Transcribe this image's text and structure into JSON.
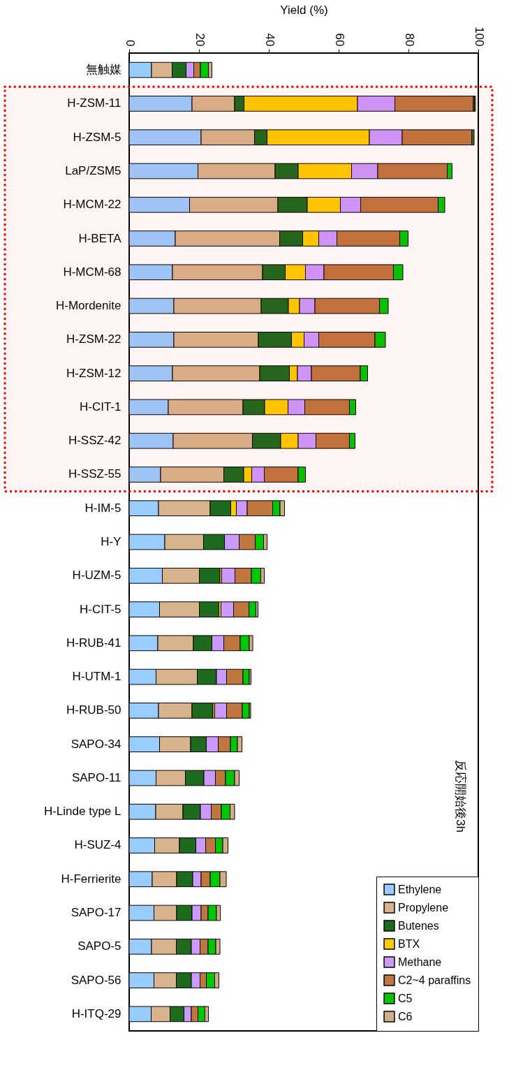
{
  "chart_data": {
    "type": "bar",
    "orientation": "horizontal",
    "stacked": true,
    "xlabel": "Yield (%)",
    "xlim": [
      0,
      100
    ],
    "xticks": [
      0,
      20,
      40,
      60,
      80,
      100
    ],
    "grid": false,
    "legend": "bottom right",
    "categories": [
      "無触媒",
      "H-ZSM-11",
      "H-ZSM-5",
      "LaP/ZSM5",
      "H-MCM-22",
      "H-BETA",
      "H-MCM-68",
      "H-Mordenite",
      "H-ZSM-22",
      "H-ZSM-12",
      "H-CIT-1",
      "H-SSZ-42",
      "H-SSZ-55",
      "H-IM-5",
      "H-Y",
      "H-UZM-5",
      "H-CIT-5",
      "H-RUB-41",
      "H-UTM-1",
      "H-RUB-50",
      "SAPO-34",
      "SAPO-11",
      "H-Linde type L",
      "H-SUZ-4",
      "H-Ferrierite",
      "SAPO-17",
      "SAPO-5",
      "SAPO-56",
      "H-ITQ-29"
    ],
    "series": [
      {
        "name": "Ethylene",
        "color": "#99ccff",
        "values": [
          6.4,
          18.0,
          20.6,
          19.7,
          17.3,
          13.2,
          12.4,
          12.8,
          12.8,
          12.4,
          11.2,
          12.6,
          9.0,
          8.4,
          10.2,
          9.5,
          8.7,
          8.2,
          7.7,
          8.4,
          8.7,
          7.7,
          7.6,
          7.3,
          6.6,
          7.1,
          6.4,
          7.1,
          6.3
        ]
      },
      {
        "name": "Propylene",
        "color": "#d9b38c",
        "values": [
          5.9,
          12.2,
          15.3,
          22.1,
          25.3,
          29.9,
          25.8,
          25.0,
          24.2,
          25.0,
          21.4,
          22.7,
          18.1,
          14.8,
          11.1,
          10.6,
          11.4,
          10.2,
          11.8,
          9.6,
          8.9,
          8.4,
          7.8,
          7.1,
          7.0,
          6.5,
          7.1,
          6.4,
          5.4
        ]
      },
      {
        "name": "Butenes",
        "color": "#1e6b1e",
        "values": [
          4.0,
          2.7,
          3.6,
          6.6,
          8.4,
          6.6,
          6.5,
          7.8,
          9.5,
          8.5,
          6.2,
          8.1,
          5.7,
          5.9,
          6.0,
          5.9,
          5.6,
          5.3,
          5.5,
          6.0,
          4.5,
          5.3,
          5.0,
          4.7,
          4.6,
          4.4,
          4.3,
          4.3,
          4.0
        ]
      },
      {
        "name": "BTX",
        "color": "#ffcc00",
        "values": [
          null,
          32.5,
          29.3,
          15.3,
          9.5,
          4.6,
          5.8,
          3.2,
          3.6,
          2.3,
          6.7,
          5.0,
          2.3,
          1.6,
          null,
          0.5,
          0.6,
          null,
          null,
          0.5,
          null,
          null,
          null,
          null,
          null,
          null,
          null,
          null,
          null
        ]
      },
      {
        "name": "Methane",
        "color": "#cc99ff",
        "values": [
          2.2,
          10.7,
          9.4,
          7.5,
          5.8,
          5.2,
          5.3,
          4.4,
          4.2,
          4.0,
          4.8,
          5.1,
          3.6,
          3.1,
          4.2,
          3.8,
          3.6,
          3.4,
          2.9,
          3.4,
          3.4,
          3.3,
          3.1,
          2.8,
          2.4,
          2.6,
          2.5,
          2.5,
          2.1
        ]
      },
      {
        "name": "C2~4 paraffins",
        "color": "#c0763f",
        "values": [
          1.9,
          22.5,
          19.9,
          19.9,
          22.2,
          18.0,
          19.9,
          18.5,
          16.1,
          14.0,
          12.8,
          9.6,
          9.7,
          7.3,
          4.6,
          4.7,
          4.4,
          4.7,
          4.7,
          4.5,
          3.5,
          2.9,
          2.9,
          2.8,
          2.6,
          2.0,
          2.3,
          1.8,
          1.9
        ]
      },
      {
        "name": "C5",
        "color": "#00c800",
        "values": [
          2.3,
          0.3,
          0.4,
          1.4,
          1.9,
          2.4,
          2.7,
          2.5,
          3.0,
          2.1,
          1.8,
          1.6,
          2.1,
          2.1,
          2.4,
          2.7,
          2.0,
          2.6,
          1.8,
          2.0,
          2.0,
          2.6,
          2.5,
          2.1,
          2.8,
          2.4,
          2.2,
          2.4,
          2.0
        ]
      },
      {
        "name": "C6",
        "color": "#d2ae86",
        "values": [
          1.0,
          0.3,
          0.3,
          null,
          null,
          null,
          null,
          null,
          null,
          null,
          null,
          null,
          null,
          1.3,
          1.0,
          1.0,
          0.6,
          1.0,
          0.5,
          0.4,
          1.3,
          1.3,
          1.3,
          1.5,
          1.8,
          1.1,
          1.2,
          1.2,
          1.0
        ]
      }
    ],
    "bands": [
      {
        "axis": "y",
        "from": "H-ZSM-11",
        "to": "H-SSZ-55",
        "color": "#ff0000"
      }
    ],
    "annotations": [
      "反応開始後3h"
    ]
  }
}
